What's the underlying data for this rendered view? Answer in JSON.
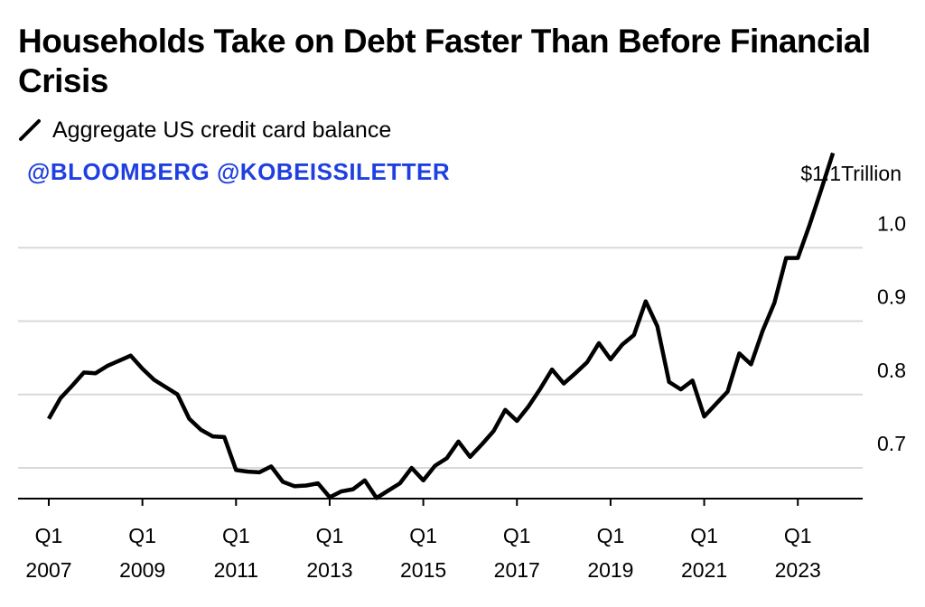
{
  "title": "Households Take on Debt Faster Than Before Financial Crisis",
  "legend_label": "Aggregate US credit card balance",
  "credit": "@BLOOMBERG @KOBEISSILETTER",
  "colors": {
    "line": "#000000",
    "grid": "#d9d9d9",
    "credit": "#1f3fe0"
  },
  "chart_data": {
    "type": "line",
    "title": "Households Take on Debt Faster Than Before Financial Crisis",
    "xlabel": "",
    "ylabel": "",
    "y_unit_label": "Trillion",
    "y_ticks": [
      {
        "value": 0.7,
        "label": "0.7"
      },
      {
        "value": 0.8,
        "label": "0.8"
      },
      {
        "value": 0.9,
        "label": "0.9"
      },
      {
        "value": 1.0,
        "label": "1.0"
      },
      {
        "value": 1.1,
        "label": "$1.1"
      }
    ],
    "x_ticks": [
      {
        "value": 2007,
        "q": "Q1",
        "year": "2007"
      },
      {
        "value": 2009,
        "q": "Q1",
        "year": "2009"
      },
      {
        "value": 2011,
        "q": "Q1",
        "year": "2011"
      },
      {
        "value": 2013,
        "q": "Q1",
        "year": "2013"
      },
      {
        "value": 2015,
        "q": "Q1",
        "year": "2015"
      },
      {
        "value": 2017,
        "q": "Q1",
        "year": "2017"
      },
      {
        "value": 2019,
        "q": "Q1",
        "year": "2019"
      },
      {
        "value": 2021,
        "q": "Q1",
        "year": "2021"
      },
      {
        "value": 2023,
        "q": "Q1",
        "year": "2023"
      }
    ],
    "xlim": [
      2007,
      2024.25
    ],
    "ylim": [
      0.655,
      1.1
    ],
    "grid": true,
    "series": [
      {
        "name": "Aggregate US credit card balance",
        "points": [
          [
            2007.0,
            0.767
          ],
          [
            2007.25,
            0.795
          ],
          [
            2007.5,
            0.812
          ],
          [
            2007.75,
            0.83
          ],
          [
            2008.0,
            0.829
          ],
          [
            2008.25,
            0.839
          ],
          [
            2008.5,
            0.846
          ],
          [
            2008.75,
            0.853
          ],
          [
            2009.0,
            0.835
          ],
          [
            2009.25,
            0.82
          ],
          [
            2009.5,
            0.81
          ],
          [
            2009.75,
            0.8
          ],
          [
            2010.0,
            0.767
          ],
          [
            2010.25,
            0.752
          ],
          [
            2010.5,
            0.743
          ],
          [
            2010.75,
            0.742
          ],
          [
            2011.0,
            0.697
          ],
          [
            2011.25,
            0.695
          ],
          [
            2011.5,
            0.694
          ],
          [
            2011.75,
            0.702
          ],
          [
            2012.0,
            0.681
          ],
          [
            2012.25,
            0.675
          ],
          [
            2012.5,
            0.676
          ],
          [
            2012.75,
            0.679
          ],
          [
            2013.0,
            0.66
          ],
          [
            2013.25,
            0.668
          ],
          [
            2013.5,
            0.671
          ],
          [
            2013.75,
            0.683
          ],
          [
            2014.0,
            0.659
          ],
          [
            2014.25,
            0.669
          ],
          [
            2014.5,
            0.679
          ],
          [
            2014.75,
            0.7
          ],
          [
            2015.0,
            0.683
          ],
          [
            2015.25,
            0.703
          ],
          [
            2015.5,
            0.713
          ],
          [
            2015.75,
            0.736
          ],
          [
            2016.0,
            0.715
          ],
          [
            2016.25,
            0.732
          ],
          [
            2016.5,
            0.75
          ],
          [
            2016.75,
            0.779
          ],
          [
            2017.0,
            0.764
          ],
          [
            2017.25,
            0.784
          ],
          [
            2017.5,
            0.808
          ],
          [
            2017.75,
            0.834
          ],
          [
            2018.0,
            0.815
          ],
          [
            2018.25,
            0.829
          ],
          [
            2018.5,
            0.844
          ],
          [
            2018.75,
            0.87
          ],
          [
            2019.0,
            0.848
          ],
          [
            2019.25,
            0.868
          ],
          [
            2019.5,
            0.881
          ],
          [
            2019.75,
            0.927
          ],
          [
            2020.0,
            0.893
          ],
          [
            2020.25,
            0.817
          ],
          [
            2020.5,
            0.807
          ],
          [
            2020.75,
            0.819
          ],
          [
            2021.0,
            0.77
          ],
          [
            2021.25,
            0.787
          ],
          [
            2021.5,
            0.804
          ],
          [
            2021.75,
            0.856
          ],
          [
            2022.0,
            0.841
          ],
          [
            2022.25,
            0.887
          ],
          [
            2022.5,
            0.925
          ],
          [
            2022.75,
            0.986
          ],
          [
            2023.0,
            0.986
          ],
          [
            2023.25,
            1.031
          ],
          [
            2023.5,
            1.079
          ],
          [
            2023.75,
            1.129
          ]
        ]
      }
    ]
  }
}
